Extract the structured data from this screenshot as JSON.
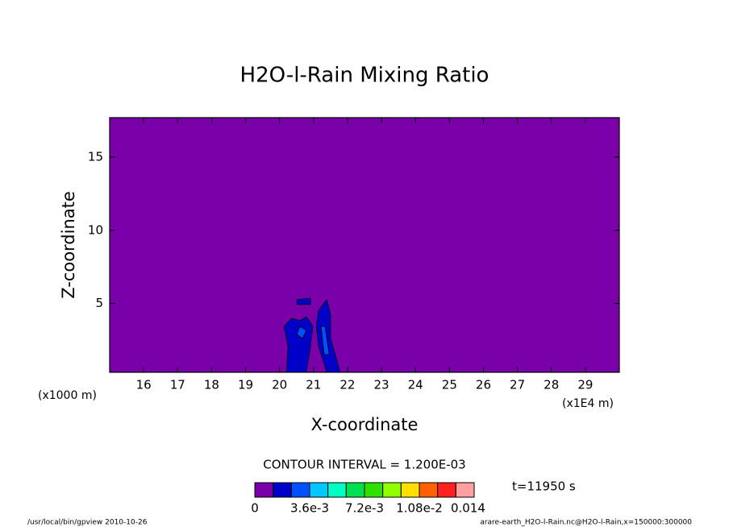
{
  "chart_data": {
    "type": "contour",
    "title": "H2O-l-Rain Mixing Ratio",
    "x_label": "X-coordinate",
    "y_label": "Z-coordinate",
    "x_unit_left": "(x1000 m)",
    "x_unit_right": "(x1E4 m)",
    "xlim": [
      15,
      30
    ],
    "xticks": [
      16,
      17,
      18,
      19,
      20,
      21,
      22,
      23,
      24,
      25,
      26,
      27,
      28,
      29
    ],
    "ylim": [
      0.3,
      17.7
    ],
    "yticks": [
      5,
      10,
      15
    ],
    "background_color": "#7a00aa",
    "contours": [
      {
        "level": 0.0012,
        "color": "#0000c8",
        "x": [
          20.2,
          20.25,
          20.13,
          20.36,
          20.6,
          20.79,
          20.98,
          20.91,
          20.79
        ],
        "z": [
          0.3,
          2.06,
          3.44,
          3.99,
          3.82,
          4.1,
          3.44,
          2.06,
          0.3
        ]
      },
      {
        "level": 0.0012,
        "color": "#0000c8",
        "x": [
          21.15,
          21.39,
          21.5,
          21.5,
          21.79,
          21.39,
          21.15,
          21.08
        ],
        "z": [
          4.54,
          5.26,
          4.26,
          2.61,
          0.3,
          0.3,
          2.06,
          3.44
        ]
      },
      {
        "level": 0.0012,
        "color": "#0000c8",
        "x": [
          20.51,
          20.91,
          20.91,
          20.51
        ],
        "z": [
          5.26,
          5.37,
          4.93,
          4.93
        ]
      },
      {
        "level": 0.0024,
        "color": "#0050ff",
        "x": [
          21.22,
          21.34,
          21.46,
          21.31
        ],
        "z": [
          3.44,
          3.44,
          1.51,
          1.51
        ]
      },
      {
        "level": 0.0024,
        "color": "#0050ff",
        "x": [
          20.6,
          20.79,
          20.67,
          20.51
        ],
        "z": [
          3.44,
          3.16,
          2.61,
          2.89
        ]
      }
    ],
    "contour_interval": "CONTOUR INTERVAL = 1.200E-03",
    "colorbar": {
      "lim": [
        0,
        0.0144
      ],
      "colors": [
        "#7a00aa",
        "#0000c8",
        "#0050ff",
        "#00c8ff",
        "#00ffc0",
        "#00e050",
        "#30e000",
        "#90ff00",
        "#ffe000",
        "#ff6000",
        "#ff2020",
        "#ffa0a0"
      ],
      "ticks": [
        {
          "value": 0,
          "label": "0"
        },
        {
          "value": 0.0036,
          "label": "3.6e-3"
        },
        {
          "value": 0.0072,
          "label": "7.2e-3"
        },
        {
          "value": 0.0108,
          "label": "1.08e-2"
        },
        {
          "value": 0.014,
          "label": "0.014"
        }
      ]
    },
    "time_label": "t=11950 s",
    "footer_left": "/usr/local/bin/gpview  2010-10-26",
    "footer_right": "arare-earth_H2O-l-Rain.nc@H2O-l-Rain,x=150000:300000"
  }
}
